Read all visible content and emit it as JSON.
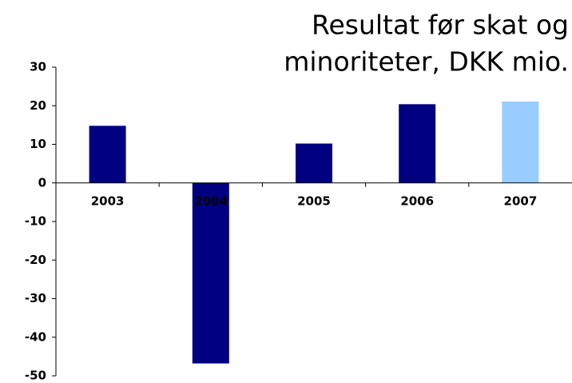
{
  "chart_data": {
    "type": "bar",
    "title": [
      "Resultat før skat og",
      "minoriteter, DKK mio."
    ],
    "categories": [
      "2003",
      "2004",
      "2005",
      "2006",
      "2007"
    ],
    "values": [
      14.8,
      -46.8,
      10.2,
      20.4,
      21.1
    ],
    "colors": [
      "#000080",
      "#000080",
      "#000080",
      "#000080",
      "#99ccff"
    ],
    "ylim": [
      -50,
      30
    ],
    "yticks": [
      30,
      20,
      10,
      0,
      -10,
      -20,
      -30,
      -40,
      -50
    ],
    "grid": false
  }
}
